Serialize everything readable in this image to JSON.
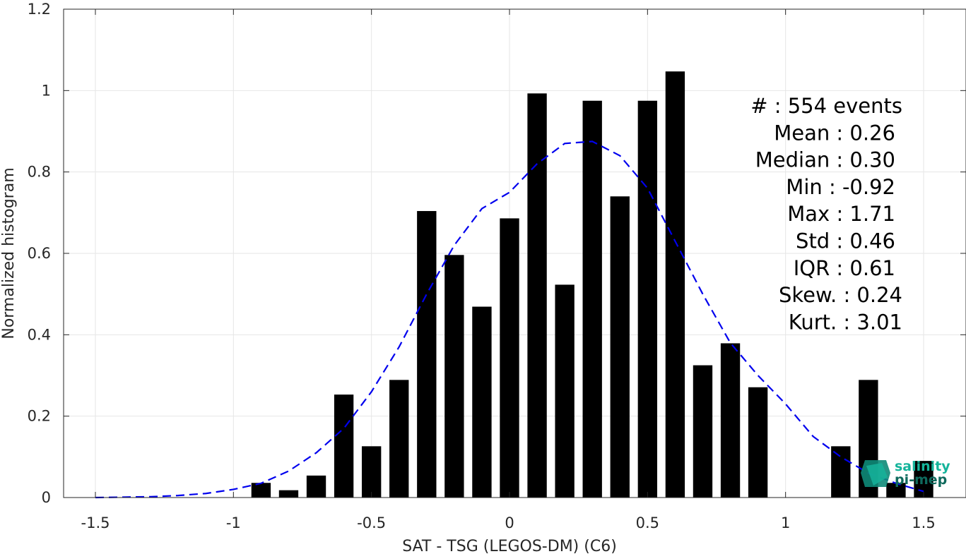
{
  "chart_data": {
    "type": "bar",
    "xlabel": "SAT - TSG (LEGOS-DM) (C6)",
    "ylabel": "Normalized histogram",
    "xlim": [
      -1.5,
      1.5
    ],
    "ylim": [
      0,
      1.2
    ],
    "xticks": [
      -1.5,
      -1,
      -0.5,
      0,
      0.5,
      1,
      1.5
    ],
    "xtick_labels": [
      "-1.5",
      "-1",
      "-0.5",
      "0",
      "0.5",
      "1",
      "1.5"
    ],
    "yticks": [
      0,
      0.2,
      0.4,
      0.6,
      0.8,
      1,
      1.2
    ],
    "ytick_labels": [
      "0",
      "0.2",
      "0.4",
      "0.6",
      "0.8",
      "1",
      "1.2"
    ],
    "grid": true,
    "bar_color": "#000000",
    "fit_color": "#0000ee",
    "bins": [
      -0.9,
      -0.8,
      -0.7,
      -0.6,
      -0.5,
      -0.4,
      -0.3,
      -0.2,
      -0.1,
      0.0,
      0.1,
      0.2,
      0.3,
      0.4,
      0.5,
      0.6,
      0.7,
      0.8,
      0.9,
      1.0,
      1.1,
      1.2,
      1.3,
      1.4,
      1.5
    ],
    "values": [
      0.036,
      0.018,
      0.054,
      0.253,
      0.126,
      0.289,
      0.704,
      0.596,
      0.469,
      0.686,
      0.993,
      0.523,
      0.975,
      0.74,
      0.975,
      1.047,
      0.325,
      0.379,
      0.271,
      0,
      0,
      0.126,
      0.289,
      0.036,
      0.09
    ],
    "series": [
      {
        "type": "line",
        "style": "dashed",
        "x": [
          -1.5,
          -1.4,
          -1.3,
          -1.2,
          -1.1,
          -1.0,
          -0.9,
          -0.8,
          -0.7,
          -0.6,
          -0.5,
          -0.4,
          -0.3,
          -0.2,
          -0.1,
          0.0,
          0.1,
          0.2,
          0.3,
          0.4,
          0.5,
          0.6,
          0.7,
          0.8,
          0.9,
          1.0,
          1.1,
          1.2,
          1.3,
          1.4,
          1.5
        ],
        "y": [
          0.0,
          0.001,
          0.002,
          0.005,
          0.01,
          0.02,
          0.035,
          0.065,
          0.11,
          0.17,
          0.26,
          0.37,
          0.5,
          0.62,
          0.71,
          0.75,
          0.82,
          0.87,
          0.875,
          0.84,
          0.76,
          0.63,
          0.5,
          0.38,
          0.3,
          0.23,
          0.15,
          0.1,
          0.06,
          0.035,
          0.015
        ]
      }
    ],
    "stats": [
      "#  : 554 events",
      "Mean : 0.26",
      "Median : 0.30",
      "Min : -0.92",
      "Max : 1.71",
      "Std : 0.46",
      "IQR : 0.61",
      "Skew. : 0.24",
      "Kurt. : 3.01"
    ]
  },
  "logo": {
    "line1": "salinity",
    "line2": "pi-mep"
  }
}
